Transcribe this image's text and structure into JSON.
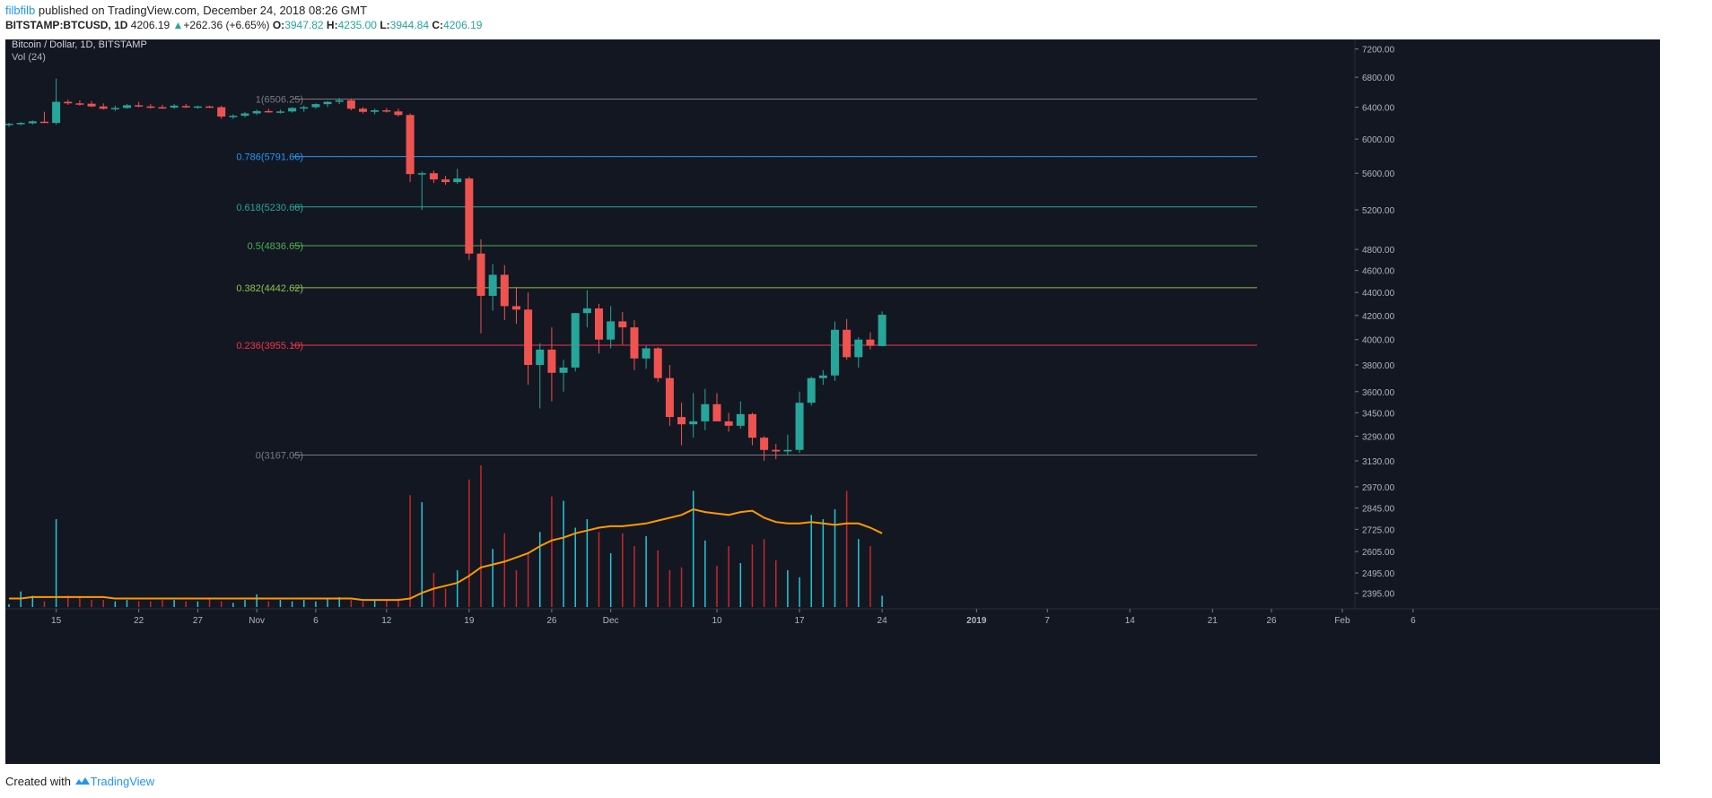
{
  "header": {
    "author": "filbfilb",
    "published_text": "published on TradingView.com, December 24, 2018 08:26 GMT",
    "symbol": "BITSTAMP:BTCUSD, 1D",
    "last": "4206.19",
    "change_arrow": "▲",
    "change": "+262.36 (+6.65%)",
    "o_label": "O:",
    "o_value": "3947.82",
    "h_label": "H:",
    "h_value": "4235.00",
    "l_label": "L:",
    "l_value": "3944.84",
    "c_label": "C:",
    "c_value": "4206.19"
  },
  "footer": {
    "created_with": "Created with",
    "brand": "TradingView"
  },
  "colors": {
    "background": "#131722",
    "up": "#26a69a",
    "down": "#ef5350",
    "volume_ma": "#ff9800",
    "fib_1": "#787b86",
    "fib_0786": "#2196f3",
    "fib_0618": "#26a69a",
    "fib_05": "#4caf50",
    "fib_0382": "#8bc34a",
    "fib_0236": "#f23645",
    "fib_0": "#787b86"
  },
  "chart_data": {
    "type": "candlestick",
    "title": "Bitcoin / Dollar, 1D, BITSTAMP",
    "volume_label": "Vol (24)",
    "ylim": [
      2350,
      7300
    ],
    "y_scale": "log",
    "y_ticks": [
      "7200.00",
      "6800.00",
      "6400.00",
      "6000.00",
      "5600.00",
      "5200.00",
      "4800.00",
      "4600.00",
      "4400.00",
      "4200.00",
      "4000.00",
      "3800.00",
      "3600.00",
      "3450.00",
      "3290.00",
      "3130.00",
      "2970.00",
      "2845.00",
      "2725.00",
      "2605.00",
      "2495.00",
      "2395.00"
    ],
    "x_ticks": [
      {
        "day": 4,
        "label": "15"
      },
      {
        "day": 11,
        "label": "22"
      },
      {
        "day": 16,
        "label": "27"
      },
      {
        "day": 21,
        "label": "Nov"
      },
      {
        "day": 26,
        "label": "6"
      },
      {
        "day": 32,
        "label": "12"
      },
      {
        "day": 39,
        "label": "19"
      },
      {
        "day": 46,
        "label": "26"
      },
      {
        "day": 51,
        "label": "Dec"
      },
      {
        "day": 60,
        "label": "10"
      },
      {
        "day": 67,
        "label": "17"
      },
      {
        "day": 74,
        "label": "24"
      },
      {
        "day": 82,
        "label": "2019"
      },
      {
        "day": 88,
        "label": "7"
      },
      {
        "day": 95,
        "label": "14"
      },
      {
        "day": 102,
        "label": "21"
      },
      {
        "day": 107,
        "label": "26"
      },
      {
        "day": 113,
        "label": "Feb"
      },
      {
        "day": 119,
        "label": "6"
      }
    ],
    "fib_levels": [
      {
        "label": "1(6506.25)",
        "value": 6506.25,
        "color_key": "fib_1"
      },
      {
        "label": "0.786(5791.66)",
        "value": 5791.66,
        "color_key": "fib_0786"
      },
      {
        "label": "0.618(5230.68)",
        "value": 5230.68,
        "color_key": "fib_0618"
      },
      {
        "label": "0.5(4836.65)",
        "value": 4836.65,
        "color_key": "fib_05"
      },
      {
        "label": "0.382(4442.62)",
        "value": 4442.62,
        "color_key": "fib_0382"
      },
      {
        "label": "0.236(3955.10)",
        "value": 3955.1,
        "color_key": "fib_0236"
      },
      {
        "label": "0(3167.05)",
        "value": 3167.05,
        "color_key": "fib_0"
      }
    ],
    "candles": [
      [
        6180,
        6200,
        6150,
        6190
      ],
      [
        6190,
        6210,
        6170,
        6200
      ],
      [
        6195,
        6230,
        6180,
        6220
      ],
      [
        6215,
        6340,
        6200,
        6210
      ],
      [
        6200,
        6780,
        6180,
        6470
      ],
      [
        6470,
        6500,
        6430,
        6450
      ],
      [
        6450,
        6490,
        6420,
        6440
      ],
      [
        6445,
        6480,
        6400,
        6410
      ],
      [
        6410,
        6450,
        6370,
        6380
      ],
      [
        6380,
        6420,
        6350,
        6390
      ],
      [
        6390,
        6440,
        6380,
        6425
      ],
      [
        6425,
        6470,
        6400,
        6410
      ],
      [
        6410,
        6440,
        6380,
        6405
      ],
      [
        6400,
        6430,
        6380,
        6395
      ],
      [
        6395,
        6440,
        6380,
        6420
      ],
      [
        6415,
        6440,
        6390,
        6400
      ],
      [
        6400,
        6420,
        6380,
        6410
      ],
      [
        6410,
        6420,
        6390,
        6400
      ],
      [
        6400,
        6420,
        6250,
        6280
      ],
      [
        6275,
        6310,
        6250,
        6290
      ],
      [
        6290,
        6340,
        6270,
        6320
      ],
      [
        6320,
        6370,
        6300,
        6350
      ],
      [
        6350,
        6380,
        6330,
        6340
      ],
      [
        6340,
        6370,
        6320,
        6345
      ],
      [
        6345,
        6400,
        6330,
        6390
      ],
      [
        6390,
        6420,
        6340,
        6400
      ],
      [
        6400,
        6450,
        6380,
        6440
      ],
      [
        6440,
        6480,
        6400,
        6470
      ],
      [
        6470,
        6520,
        6440,
        6490
      ],
      [
        6490,
        6510,
        6360,
        6380
      ],
      [
        6380,
        6400,
        6320,
        6340
      ],
      [
        6340,
        6380,
        6310,
        6360
      ],
      [
        6360,
        6390,
        6330,
        6345
      ],
      [
        6345,
        6380,
        6280,
        6300
      ],
      [
        6300,
        6320,
        5500,
        5590
      ],
      [
        5590,
        5620,
        5200,
        5600
      ],
      [
        5600,
        5630,
        5490,
        5530
      ],
      [
        5530,
        5570,
        5470,
        5500
      ],
      [
        5500,
        5650,
        5480,
        5540
      ],
      [
        5540,
        5560,
        4700,
        4760
      ],
      [
        4760,
        4900,
        4050,
        4370
      ],
      [
        4370,
        4660,
        4240,
        4560
      ],
      [
        4560,
        4650,
        4160,
        4280
      ],
      [
        4280,
        4450,
        4130,
        4250
      ],
      [
        4250,
        4400,
        3650,
        3800
      ],
      [
        3800,
        3970,
        3480,
        3920
      ],
      [
        3920,
        4100,
        3530,
        3740
      ],
      [
        3740,
        3840,
        3600,
        3780
      ],
      [
        3780,
        4220,
        3750,
        4220
      ],
      [
        4220,
        4420,
        4100,
        4260
      ],
      [
        4260,
        4300,
        3890,
        4000
      ],
      [
        4000,
        4280,
        3930,
        4150
      ],
      [
        4150,
        4230,
        3960,
        4100
      ],
      [
        4100,
        4160,
        3760,
        3850
      ],
      [
        3850,
        3950,
        3770,
        3930
      ],
      [
        3930,
        3940,
        3670,
        3700
      ],
      [
        3700,
        3800,
        3360,
        3420
      ],
      [
        3420,
        3520,
        3230,
        3370
      ],
      [
        3370,
        3590,
        3280,
        3390
      ],
      [
        3390,
        3620,
        3330,
        3510
      ],
      [
        3510,
        3590,
        3410,
        3390
      ],
      [
        3390,
        3450,
        3320,
        3360
      ],
      [
        3360,
        3530,
        3340,
        3440
      ],
      [
        3440,
        3450,
        3230,
        3280
      ],
      [
        3280,
        3290,
        3130,
        3200
      ],
      [
        3200,
        3240,
        3140,
        3190
      ],
      [
        3190,
        3300,
        3170,
        3200
      ],
      [
        3200,
        3600,
        3180,
        3520
      ],
      [
        3520,
        3710,
        3500,
        3700
      ],
      [
        3700,
        3760,
        3650,
        3720
      ],
      [
        3720,
        4150,
        3680,
        4080
      ],
      [
        4080,
        4170,
        3840,
        3860
      ],
      [
        3860,
        4020,
        3780,
        4000
      ],
      [
        4000,
        4060,
        3920,
        3950
      ],
      [
        3948,
        4235,
        3945,
        4206
      ]
    ],
    "volumes": [
      0.02,
      0.11,
      0.08,
      0.04,
      0.62,
      0.08,
      0.07,
      0.05,
      0.05,
      0.04,
      0.05,
      0.04,
      0.04,
      0.05,
      0.05,
      0.04,
      0.04,
      0.06,
      0.04,
      0.03,
      0.05,
      0.09,
      0.04,
      0.05,
      0.04,
      0.05,
      0.04,
      0.06,
      0.07,
      0.05,
      0.04,
      0.05,
      0.05,
      0.06,
      0.79,
      0.74,
      0.24,
      0.13,
      0.26,
      0.9,
      1.0,
      0.41,
      0.52,
      0.26,
      0.38,
      0.53,
      0.78,
      0.75,
      0.56,
      0.62,
      0.53,
      0.38,
      0.52,
      0.43,
      0.5,
      0.4,
      0.26,
      0.28,
      0.82,
      0.47,
      0.29,
      0.43,
      0.31,
      0.44,
      0.48,
      0.33,
      0.26,
      0.21,
      0.65,
      0.62,
      0.69,
      0.82,
      0.48,
      0.43,
      0.08
    ],
    "volume_ma": [
      0.06,
      0.06,
      0.07,
      0.07,
      0.07,
      0.07,
      0.07,
      0.07,
      0.07,
      0.06,
      0.06,
      0.06,
      0.06,
      0.06,
      0.06,
      0.06,
      0.06,
      0.06,
      0.06,
      0.06,
      0.06,
      0.06,
      0.06,
      0.06,
      0.06,
      0.06,
      0.06,
      0.06,
      0.06,
      0.06,
      0.05,
      0.05,
      0.05,
      0.05,
      0.06,
      0.1,
      0.13,
      0.15,
      0.17,
      0.22,
      0.28,
      0.3,
      0.32,
      0.35,
      0.38,
      0.43,
      0.47,
      0.49,
      0.52,
      0.54,
      0.56,
      0.57,
      0.57,
      0.58,
      0.59,
      0.61,
      0.63,
      0.65,
      0.69,
      0.67,
      0.66,
      0.65,
      0.67,
      0.68,
      0.63,
      0.6,
      0.59,
      0.59,
      0.6,
      0.59,
      0.58,
      0.59,
      0.59,
      0.56,
      0.52
    ]
  }
}
